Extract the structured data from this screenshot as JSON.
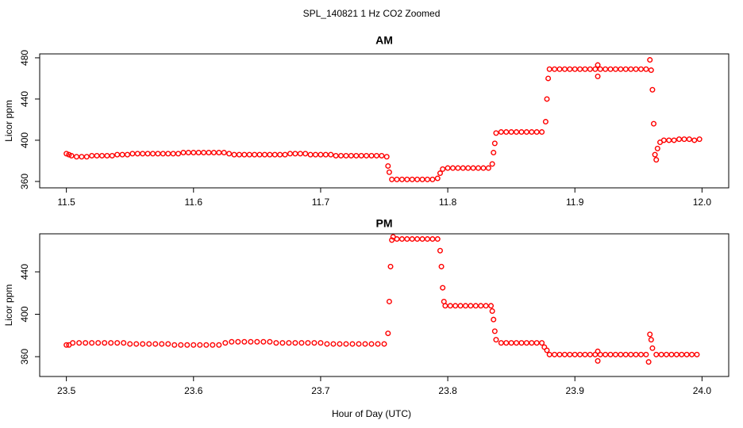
{
  "title": "SPL_140821  1 Hz CO2 Zoomed",
  "x_label": "Hour of Day (UTC)",
  "chart_data": [
    {
      "type": "scatter",
      "title": "AM",
      "y_label": "Licor ppm",
      "color": "#ff0000",
      "xlim": [
        11.479,
        12.021
      ],
      "ylim": [
        353.8,
        483.8
      ],
      "xticks": [
        11.5,
        11.6,
        11.7,
        11.8,
        11.9,
        {
          "value": 12,
          "label": "12.0"
        }
      ],
      "yticks": [
        360,
        400,
        440,
        480
      ],
      "x": [
        11.5,
        11.502,
        11.504,
        11.508,
        11.512,
        11.516,
        11.52,
        11.524,
        11.528,
        11.532,
        11.536,
        11.54,
        11.544,
        11.548,
        11.552,
        11.556,
        11.56,
        11.564,
        11.568,
        11.572,
        11.576,
        11.58,
        11.584,
        11.588,
        11.592,
        11.596,
        11.6,
        11.604,
        11.608,
        11.612,
        11.616,
        11.62,
        11.624,
        11.628,
        11.632,
        11.636,
        11.64,
        11.644,
        11.648,
        11.652,
        11.656,
        11.66,
        11.664,
        11.668,
        11.672,
        11.676,
        11.68,
        11.684,
        11.688,
        11.692,
        11.696,
        11.7,
        11.704,
        11.708,
        11.712,
        11.716,
        11.72,
        11.724,
        11.728,
        11.732,
        11.736,
        11.74,
        11.744,
        11.748,
        11.752,
        11.753,
        11.754,
        11.756,
        11.76,
        11.764,
        11.768,
        11.772,
        11.776,
        11.78,
        11.784,
        11.788,
        11.792,
        11.794,
        11.796,
        11.8,
        11.804,
        11.808,
        11.812,
        11.816,
        11.82,
        11.824,
        11.828,
        11.832,
        11.835,
        11.836,
        11.837,
        11.838,
        11.842,
        11.846,
        11.85,
        11.854,
        11.858,
        11.862,
        11.866,
        11.87,
        11.874,
        11.877,
        11.878,
        11.879,
        11.88,
        11.884,
        11.888,
        11.892,
        11.896,
        11.9,
        11.904,
        11.908,
        11.912,
        11.916,
        11.918,
        11.918,
        11.92,
        11.924,
        11.928,
        11.932,
        11.936,
        11.94,
        11.944,
        11.948,
        11.952,
        11.956,
        11.959,
        11.96,
        11.961,
        11.962,
        11.963,
        11.964,
        11.965,
        11.967,
        11.97,
        11.974,
        11.978,
        11.982,
        11.986,
        11.99,
        11.994,
        11.998
      ],
      "values": [
        387,
        386,
        385,
        384,
        384,
        384,
        385,
        385,
        385,
        385,
        385,
        386,
        386,
        386,
        387,
        387,
        387,
        387,
        387,
        387,
        387,
        387,
        387,
        387,
        388,
        388,
        388,
        388,
        388,
        388,
        388,
        388,
        388,
        387,
        386,
        386,
        386,
        386,
        386,
        386,
        386,
        386,
        386,
        386,
        386,
        387,
        387,
        387,
        387,
        386,
        386,
        386,
        386,
        386,
        385,
        385,
        385,
        385,
        385,
        385,
        385,
        385,
        385,
        385,
        384,
        375,
        369,
        362,
        362,
        362,
        362,
        362,
        362,
        362,
        362,
        362,
        363,
        368,
        372,
        373,
        373,
        373,
        373,
        373,
        373,
        373,
        373,
        373,
        377,
        388,
        397,
        407,
        408,
        408,
        408,
        408,
        408,
        408,
        408,
        408,
        408,
        418,
        440,
        460,
        469,
        469,
        469,
        469,
        469,
        469,
        469,
        469,
        469,
        469,
        462,
        473,
        469,
        469,
        469,
        469,
        469,
        469,
        469,
        469,
        469,
        469,
        478,
        468,
        449,
        416,
        386,
        381,
        392,
        398,
        400,
        400,
        400,
        401,
        401,
        401,
        400,
        401
      ]
    },
    {
      "type": "scatter",
      "title": "PM",
      "y_label": "Licor ppm",
      "color": "#ff0000",
      "xlim": [
        23.479,
        24.021
      ],
      "ylim": [
        341.3,
        475.9
      ],
      "xticks": [
        23.5,
        23.6,
        23.7,
        23.8,
        23.9,
        {
          "value": 24,
          "label": "24.0"
        }
      ],
      "yticks": [
        360,
        400,
        440
      ],
      "x": [
        23.5,
        23.502,
        23.505,
        23.51,
        23.515,
        23.52,
        23.525,
        23.53,
        23.535,
        23.54,
        23.545,
        23.55,
        23.555,
        23.56,
        23.565,
        23.57,
        23.575,
        23.58,
        23.585,
        23.59,
        23.595,
        23.6,
        23.605,
        23.61,
        23.615,
        23.62,
        23.625,
        23.63,
        23.635,
        23.64,
        23.645,
        23.65,
        23.655,
        23.66,
        23.665,
        23.67,
        23.675,
        23.68,
        23.685,
        23.69,
        23.695,
        23.7,
        23.705,
        23.71,
        23.715,
        23.72,
        23.725,
        23.73,
        23.735,
        23.74,
        23.745,
        23.75,
        23.753,
        23.754,
        23.755,
        23.756,
        23.757,
        23.76,
        23.764,
        23.768,
        23.772,
        23.776,
        23.78,
        23.784,
        23.788,
        23.792,
        23.794,
        23.795,
        23.796,
        23.797,
        23.798,
        23.802,
        23.806,
        23.81,
        23.814,
        23.818,
        23.822,
        23.826,
        23.83,
        23.834,
        23.835,
        23.836,
        23.837,
        23.838,
        23.842,
        23.846,
        23.85,
        23.854,
        23.858,
        23.862,
        23.866,
        23.87,
        23.874,
        23.876,
        23.878,
        23.88,
        23.884,
        23.888,
        23.892,
        23.896,
        23.9,
        23.904,
        23.908,
        23.912,
        23.916,
        23.918,
        23.918,
        23.92,
        23.924,
        23.928,
        23.932,
        23.936,
        23.94,
        23.944,
        23.948,
        23.952,
        23.956,
        23.958,
        23.959,
        23.96,
        23.961,
        23.964,
        23.968,
        23.972,
        23.976,
        23.98,
        23.984,
        23.988,
        23.992,
        23.996
      ],
      "values": [
        371,
        371,
        373,
        373,
        373,
        373,
        373,
        373,
        373,
        373,
        373,
        372,
        372,
        372,
        372,
        372,
        372,
        372,
        371,
        371,
        371,
        371,
        371,
        371,
        371,
        371,
        373,
        374,
        374,
        374,
        374,
        374,
        374,
        374,
        373,
        373,
        373,
        373,
        373,
        373,
        373,
        373,
        372,
        372,
        372,
        372,
        372,
        372,
        372,
        372,
        372,
        372,
        382,
        412,
        445,
        470,
        473,
        471,
        471,
        471,
        471,
        471,
        471,
        471,
        471,
        471,
        460,
        445,
        425,
        412,
        408,
        408,
        408,
        408,
        408,
        408,
        408,
        408,
        408,
        408,
        403,
        395,
        384,
        376,
        373,
        373,
        373,
        373,
        373,
        373,
        373,
        373,
        373,
        369,
        366,
        362,
        362,
        362,
        362,
        362,
        362,
        362,
        362,
        362,
        362,
        356,
        365,
        362,
        362,
        362,
        362,
        362,
        362,
        362,
        362,
        362,
        362,
        355,
        381,
        376,
        368,
        362,
        362,
        362,
        362,
        362,
        362,
        362,
        362,
        362
      ]
    }
  ]
}
